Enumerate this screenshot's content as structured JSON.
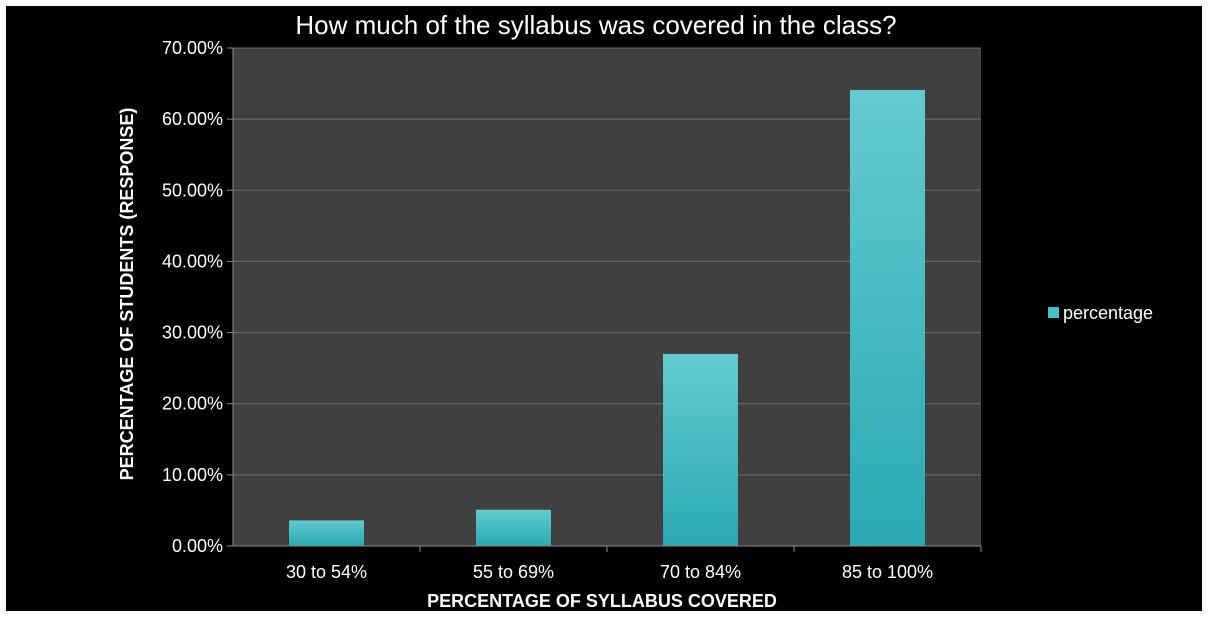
{
  "chart_data": {
    "type": "bar",
    "title": "How much of the syllabus was covered in the class?",
    "xlabel": "PERCENTAGE OF SYLLABUS COVERED",
    "ylabel": "PERCENTAGE OF STUDENTS (RESPONSE)",
    "categories": [
      "30 to 54%",
      "55 to 69%",
      "70 to 84%",
      "85 to 100%"
    ],
    "series": [
      {
        "name": "percentage",
        "values": [
          3.6,
          5.1,
          27.0,
          64.1
        ]
      }
    ],
    "ylim": [
      0,
      70
    ],
    "yticks": [
      "0.00%",
      "10.00%",
      "20.00%",
      "30.00%",
      "40.00%",
      "50.00%",
      "60.00%",
      "70.00%"
    ],
    "grid": true,
    "legend_position": "right",
    "colors": {
      "background": "#000000",
      "plot_area": "#404040",
      "gridline": "#6e6e6e",
      "bar": "#3fc1c9",
      "bar_top": "#63cbd0",
      "bar_bottom": "#2aa9b3",
      "text": "#ffffff"
    }
  }
}
